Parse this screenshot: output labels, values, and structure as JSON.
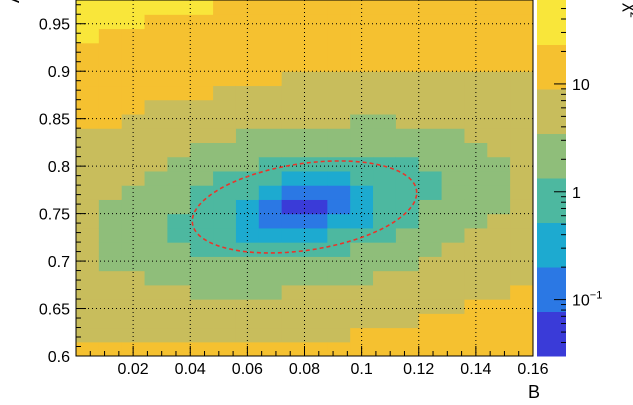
{
  "chart_data": {
    "type": "heatmap",
    "title": "",
    "xlabel": "B",
    "ylabel": "A",
    "zlabel": "χ²",
    "xlim": [
      0.0,
      0.16
    ],
    "ylim": [
      0.6,
      0.975
    ],
    "zlim": [
      0.03,
      60
    ],
    "z_scale": "log",
    "grid": true,
    "grid_style": "dotted",
    "colormap": [
      "#3a3bd8",
      "#2b78e4",
      "#1daad0",
      "#4db8a0",
      "#8fbe7a",
      "#c8bd5c",
      "#f5c130",
      "#f9e63a"
    ],
    "x_ticks": [
      "0.02",
      "0.04",
      "0.06",
      "0.08",
      "0.1",
      "0.12",
      "0.14",
      "0.16"
    ],
    "y_ticks": [
      "0.6",
      "0.65",
      "0.7",
      "0.75",
      "0.8",
      "0.85",
      "0.9",
      "0.95"
    ],
    "z_ticks": [
      {
        "value": 0.1,
        "base": "10",
        "exp": "−1"
      },
      {
        "value": 1,
        "base": "1",
        "exp": ""
      },
      {
        "value": 10,
        "base": "10",
        "exp": ""
      }
    ],
    "model": {
      "xc": 0.08,
      "yc": 0.757,
      "slope": 0.38,
      "alpha": 0.0016,
      "beta": 0.0022,
      "zmin": 0.035
    },
    "contour": {
      "level": 1,
      "color": "#e8352a",
      "style": "dashed"
    },
    "series": []
  }
}
